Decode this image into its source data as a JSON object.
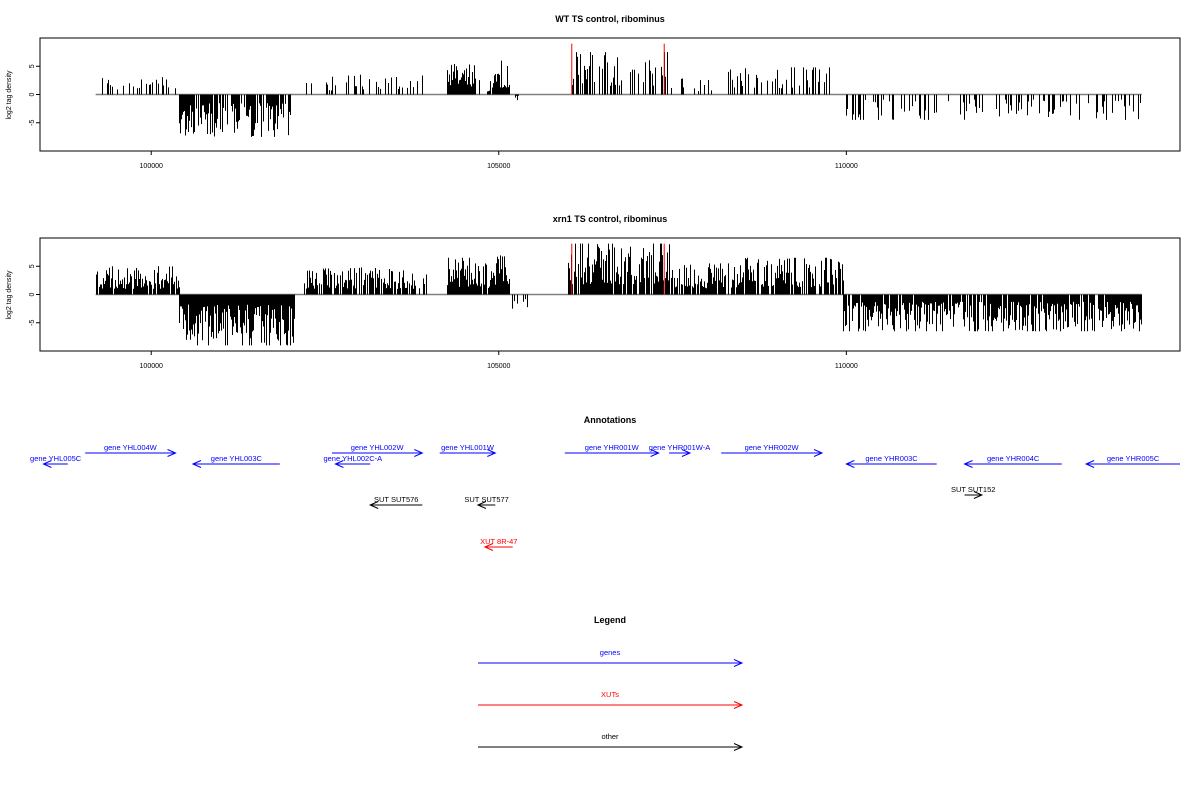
{
  "chart_data": [
    {
      "type": "bar",
      "title": "WT TS control, ribominus",
      "ylabel": "log2 tag density",
      "xlim": [
        98400,
        114800
      ],
      "ylim": [
        -10,
        10
      ],
      "xticks": [
        100000,
        105000,
        110000
      ],
      "yticks": [
        -5,
        0,
        5
      ],
      "grid": false,
      "signal_color": "#000000",
      "marker_color": "#ff0000",
      "markers": [
        {
          "x": 106050,
          "value": 9
        },
        {
          "x": 107380,
          "value": 9
        }
      ],
      "regions": [
        {
          "start": 99200,
          "end": 100350,
          "sign": 1,
          "max": 3.3,
          "density": 0.3
        },
        {
          "start": 100400,
          "end": 102000,
          "sign": -1,
          "max": 7.5,
          "density": 0.75
        },
        {
          "start": 102200,
          "end": 103900,
          "sign": 1,
          "max": 3.5,
          "density": 0.3
        },
        {
          "start": 104250,
          "end": 104650,
          "sign": 1,
          "max": 5.5,
          "density": 1.0
        },
        {
          "start": 104650,
          "end": 104900,
          "sign": 1,
          "max": 2.8,
          "density": 0.5
        },
        {
          "start": 104900,
          "end": 105150,
          "sign": 1,
          "max": 6.0,
          "density": 1.0
        },
        {
          "start": 105150,
          "end": 105300,
          "sign": -1,
          "max": 1.0,
          "density": 0.4
        },
        {
          "start": 106000,
          "end": 107450,
          "sign": 1,
          "max": 7.5,
          "density": 0.45
        },
        {
          "start": 107450,
          "end": 108050,
          "sign": 1,
          "max": 3.0,
          "density": 0.3
        },
        {
          "start": 108300,
          "end": 109800,
          "sign": 1,
          "max": 4.8,
          "density": 0.35
        },
        {
          "start": 110000,
          "end": 114250,
          "sign": -1,
          "max": 4.5,
          "density": 0.3
        }
      ]
    },
    {
      "type": "bar",
      "title": "xrn1 TS control, ribominus",
      "ylabel": "log2 tag density",
      "xlim": [
        98400,
        114800
      ],
      "ylim": [
        -10,
        10
      ],
      "xticks": [
        100000,
        105000,
        110000
      ],
      "yticks": [
        -5,
        0,
        5
      ],
      "grid": false,
      "signal_color": "#000000",
      "marker_color": "#ff0000",
      "markers": [
        {
          "x": 106050,
          "value": 9
        },
        {
          "x": 107380,
          "value": 9
        }
      ],
      "regions": [
        {
          "start": 99200,
          "end": 100400,
          "sign": 1,
          "max": 5.0,
          "density": 0.9
        },
        {
          "start": 100400,
          "end": 102050,
          "sign": -1,
          "max": 9.0,
          "density": 1.0
        },
        {
          "start": 102200,
          "end": 103950,
          "sign": 1,
          "max": 4.8,
          "density": 0.85
        },
        {
          "start": 104250,
          "end": 104650,
          "sign": 1,
          "max": 6.5,
          "density": 1.0
        },
        {
          "start": 104650,
          "end": 104900,
          "sign": 1,
          "max": 5.5,
          "density": 0.9
        },
        {
          "start": 104900,
          "end": 105150,
          "sign": 1,
          "max": 7.0,
          "density": 1.0
        },
        {
          "start": 105150,
          "end": 105400,
          "sign": -1,
          "max": 2.5,
          "density": 0.6
        },
        {
          "start": 106000,
          "end": 107450,
          "sign": 1,
          "max": 9.0,
          "density": 0.9
        },
        {
          "start": 107450,
          "end": 108500,
          "sign": 1,
          "max": 5.5,
          "density": 0.8
        },
        {
          "start": 108500,
          "end": 109950,
          "sign": 1,
          "max": 6.5,
          "density": 0.85
        },
        {
          "start": 109950,
          "end": 114250,
          "sign": -1,
          "max": 6.5,
          "density": 0.9
        }
      ]
    }
  ],
  "annotations": {
    "title": "Annotations",
    "colors": {
      "genes": "#0000ff",
      "XUTs": "#ff0000",
      "other": "#000000"
    },
    "features": [
      {
        "label": "gene YHL004W",
        "start": 99050,
        "end": 100350,
        "strand": "+",
        "type": "genes",
        "row": 0
      },
      {
        "label": "gene YHL005C",
        "start": 98450,
        "end": 98800,
        "strand": "-",
        "type": "genes",
        "row": 1
      },
      {
        "label": "gene YHL003C",
        "start": 100600,
        "end": 101850,
        "strand": "-",
        "type": "genes",
        "row": 1
      },
      {
        "label": "gene YHL002W",
        "start": 102600,
        "end": 103900,
        "strand": "+",
        "type": "genes",
        "row": 0
      },
      {
        "label": "gene YHL002C-A",
        "start": 102650,
        "end": 103150,
        "strand": "-",
        "type": "genes",
        "row": 1
      },
      {
        "label": "gene YHL001W",
        "start": 104150,
        "end": 104950,
        "strand": "+",
        "type": "genes",
        "row": 0
      },
      {
        "label": "gene YHR001W",
        "start": 105950,
        "end": 107300,
        "strand": "+",
        "type": "genes",
        "row": 0
      },
      {
        "label": "gene YHR001W-A",
        "start": 107450,
        "end": 107750,
        "strand": "+",
        "type": "genes",
        "row": 0
      },
      {
        "label": "gene YHR002W",
        "start": 108200,
        "end": 109650,
        "strand": "+",
        "type": "genes",
        "row": 0
      },
      {
        "label": "gene YHR003C",
        "start": 110000,
        "end": 111300,
        "strand": "-",
        "type": "genes",
        "row": 1
      },
      {
        "label": "gene YHR004C",
        "start": 111700,
        "end": 113100,
        "strand": "-",
        "type": "genes",
        "row": 1
      },
      {
        "label": "gene YHR005C",
        "start": 113450,
        "end": 114800,
        "strand": "-",
        "type": "genes",
        "row": 1
      },
      {
        "label": "SUT SUT576",
        "start": 103150,
        "end": 103900,
        "strand": "-",
        "type": "other",
        "row": 2
      },
      {
        "label": "SUT SUT577",
        "start": 104700,
        "end": 104950,
        "strand": "-",
        "type": "other",
        "row": 2
      },
      {
        "label": "SUT SUT152",
        "start": 111700,
        "end": 111950,
        "strand": "+",
        "type": "other",
        "row": 3
      },
      {
        "label": "XUT 8R-47",
        "start": 104800,
        "end": 105200,
        "strand": "-",
        "type": "XUTs",
        "row": 4
      }
    ]
  },
  "legend": {
    "title": "Legend",
    "items": [
      {
        "label": "genes",
        "color": "#0000ff"
      },
      {
        "label": "XUTs",
        "color": "#ff0000"
      },
      {
        "label": "other",
        "color": "#000000"
      }
    ]
  }
}
